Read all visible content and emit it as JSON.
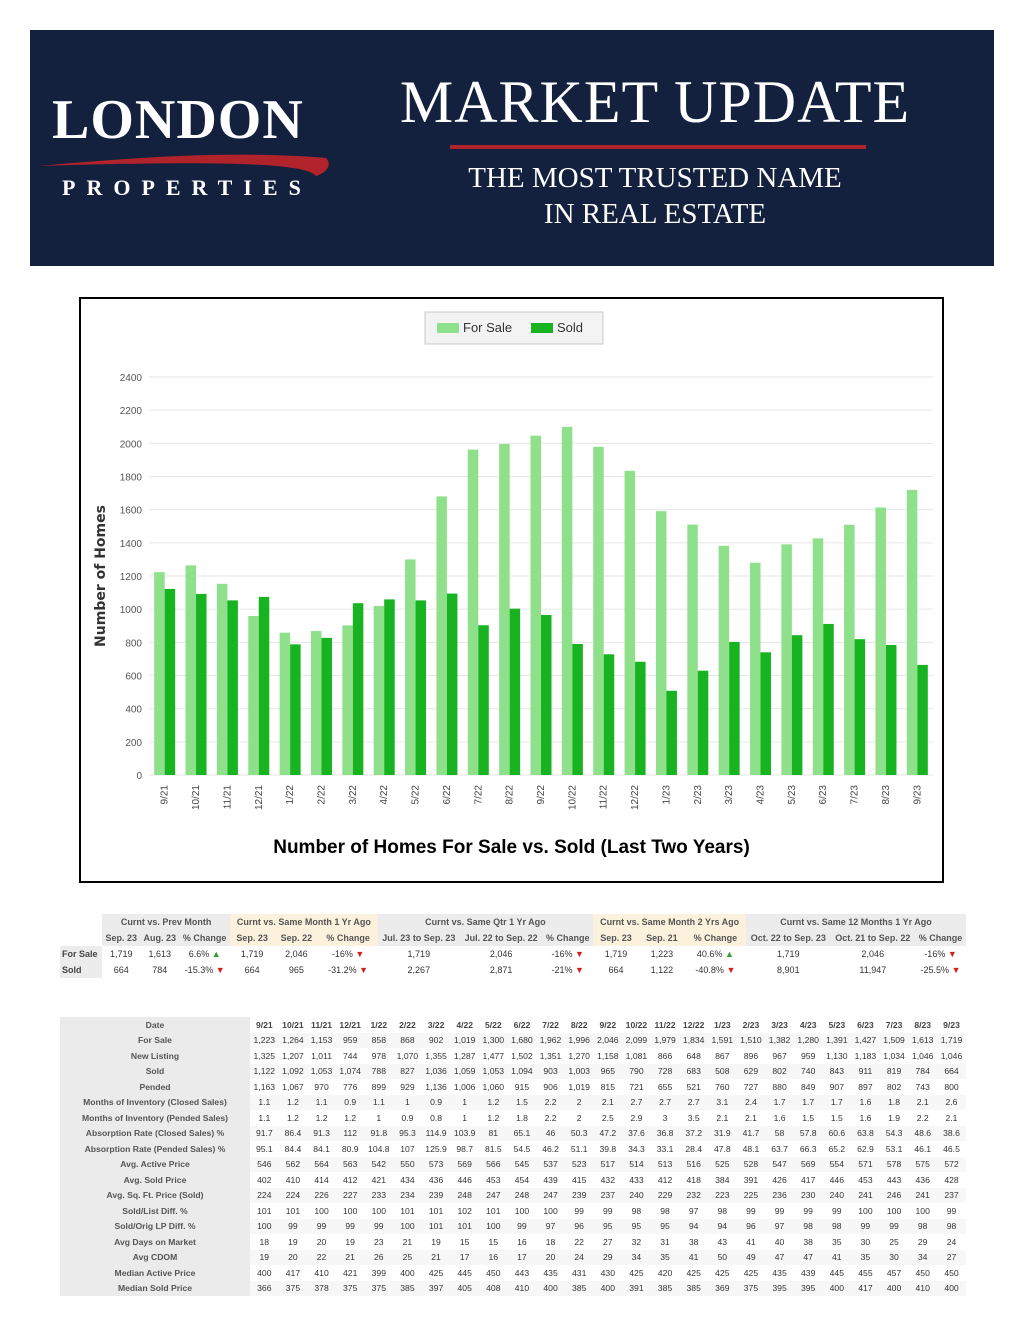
{
  "header": {
    "logo_main": "LONDON",
    "logo_sub": "PROPERTIES",
    "title": "MARKET UPDATE",
    "tagline_line1": "THE MOST TRUSTED NAME",
    "tagline_line2": "IN REAL ESTATE"
  },
  "colors": {
    "navy": "#13213f",
    "red": "#b1232a",
    "for_sale": "#8fe08a",
    "sold": "#17b320"
  },
  "chart_data": {
    "type": "bar",
    "title": "Number of Homes For Sale vs. Sold (Last Two Years)",
    "xlabel": "",
    "ylabel": "Number of Homes",
    "ylim": [
      0,
      2400
    ],
    "yticks": [
      0,
      200,
      400,
      600,
      800,
      1000,
      1200,
      1400,
      1600,
      1800,
      2000,
      2200,
      2400
    ],
    "legend_position": "top-center",
    "grid": true,
    "categories": [
      "9/21",
      "10/21",
      "11/21",
      "12/21",
      "1/22",
      "2/22",
      "3/22",
      "4/22",
      "5/22",
      "6/22",
      "7/22",
      "8/22",
      "9/22",
      "10/22",
      "11/22",
      "12/22",
      "1/23",
      "2/23",
      "3/23",
      "4/23",
      "5/23",
      "6/23",
      "7/23",
      "8/23",
      "9/23"
    ],
    "series": [
      {
        "name": "For Sale",
        "color": "#8fe08a",
        "values": [
          1223,
          1264,
          1153,
          959,
          858,
          868,
          902,
          1019,
          1300,
          1680,
          1962,
          1996,
          2046,
          2099,
          1979,
          1834,
          1591,
          1510,
          1382,
          1280,
          1391,
          1427,
          1509,
          1613,
          1719
        ]
      },
      {
        "name": "Sold",
        "color": "#17b320",
        "values": [
          1122,
          1092,
          1053,
          1074,
          788,
          827,
          1036,
          1059,
          1053,
          1094,
          903,
          1003,
          965,
          790,
          728,
          683,
          508,
          629,
          802,
          740,
          843,
          911,
          819,
          784,
          664
        ]
      }
    ]
  },
  "summary": {
    "groups": [
      "Curnt vs. Prev Month",
      "Curnt vs. Same Month 1 Yr Ago",
      "Curnt vs. Same Qtr 1 Yr Ago",
      "Curnt vs. Same Month 2 Yrs Ago",
      "Curnt vs. Same 12 Months 1 Yr Ago"
    ],
    "subheaders": [
      "Sep. 23",
      "Aug. 23",
      "% Change",
      "Sep. 23",
      "Sep. 22",
      "% Change",
      "Jul. 23 to Sep. 23",
      "Jul. 22 to Sep. 22",
      "% Change",
      "Sep. 23",
      "Sep. 21",
      "% Change",
      "Oct. 22 to Sep. 23",
      "Oct. 21 to Sep. 22",
      "% Change"
    ],
    "rows": [
      {
        "label": "For Sale",
        "cells": [
          "1,719",
          "1,613",
          "6.6% ▲",
          "1,719",
          "2,046",
          "-16% ▼",
          "1,719",
          "2,046",
          "-16% ▼",
          "1,719",
          "1,223",
          "40.6% ▲",
          "1,719",
          "2,046",
          "-16% ▼"
        ]
      },
      {
        "label": "Sold",
        "cells": [
          "664",
          "784",
          "-15.3% ▼",
          "664",
          "965",
          "-31.2% ▼",
          "2,267",
          "2,871",
          "-21% ▼",
          "664",
          "1,122",
          "-40.8% ▼",
          "8,901",
          "11,947",
          "-25.5% ▼"
        ]
      }
    ]
  },
  "detail": {
    "header_label": "Date",
    "dates": [
      "9/21",
      "10/21",
      "11/21",
      "12/21",
      "1/22",
      "2/22",
      "3/22",
      "4/22",
      "5/22",
      "6/22",
      "7/22",
      "8/22",
      "9/22",
      "10/22",
      "11/22",
      "12/22",
      "1/23",
      "2/23",
      "3/23",
      "4/23",
      "5/23",
      "6/23",
      "7/23",
      "8/23",
      "9/23"
    ],
    "rows": [
      {
        "label": "For Sale",
        "values": [
          "1,223",
          "1,264",
          "1,153",
          "959",
          "858",
          "868",
          "902",
          "1,019",
          "1,300",
          "1,680",
          "1,962",
          "1,996",
          "2,046",
          "2,099",
          "1,979",
          "1,834",
          "1,591",
          "1,510",
          "1,382",
          "1,280",
          "1,391",
          "1,427",
          "1,509",
          "1,613",
          "1,719"
        ]
      },
      {
        "label": "New Listing",
        "values": [
          "1,325",
          "1,207",
          "1,011",
          "744",
          "978",
          "1,070",
          "1,355",
          "1,287",
          "1,477",
          "1,502",
          "1,351",
          "1,270",
          "1,158",
          "1,081",
          "866",
          "648",
          "867",
          "896",
          "967",
          "959",
          "1,130",
          "1,183",
          "1,034",
          "1,046",
          "1,046"
        ]
      },
      {
        "label": "Sold",
        "values": [
          "1,122",
          "1,092",
          "1,053",
          "1,074",
          "788",
          "827",
          "1,036",
          "1,059",
          "1,053",
          "1,094",
          "903",
          "1,003",
          "965",
          "790",
          "728",
          "683",
          "508",
          "629",
          "802",
          "740",
          "843",
          "911",
          "819",
          "784",
          "664"
        ]
      },
      {
        "label": "Pended",
        "values": [
          "1,163",
          "1,067",
          "970",
          "776",
          "899",
          "929",
          "1,136",
          "1,006",
          "1,060",
          "915",
          "906",
          "1,019",
          "815",
          "721",
          "655",
          "521",
          "760",
          "727",
          "880",
          "849",
          "907",
          "897",
          "802",
          "743",
          "800"
        ]
      },
      {
        "label": "Months of Inventory (Closed Sales)",
        "values": [
          "1.1",
          "1.2",
          "1.1",
          "0.9",
          "1.1",
          "1",
          "0.9",
          "1",
          "1.2",
          "1.5",
          "2.2",
          "2",
          "2.1",
          "2.7",
          "2.7",
          "2.7",
          "3.1",
          "2.4",
          "1.7",
          "1.7",
          "1.7",
          "1.6",
          "1.8",
          "2.1",
          "2.6"
        ]
      },
      {
        "label": "Months of Inventory (Pended Sales)",
        "values": [
          "1.1",
          "1.2",
          "1.2",
          "1.2",
          "1",
          "0.9",
          "0.8",
          "1",
          "1.2",
          "1.8",
          "2.2",
          "2",
          "2.5",
          "2.9",
          "3",
          "3.5",
          "2.1",
          "2.1",
          "1.6",
          "1.5",
          "1.5",
          "1.6",
          "1.9",
          "2.2",
          "2.1"
        ]
      },
      {
        "label": "Absorption Rate (Closed Sales) %",
        "values": [
          "91.7",
          "86.4",
          "91.3",
          "112",
          "91.8",
          "95.3",
          "114.9",
          "103.9",
          "81",
          "65.1",
          "46",
          "50.3",
          "47.2",
          "37.6",
          "36.8",
          "37.2",
          "31.9",
          "41.7",
          "58",
          "57.8",
          "60.6",
          "63.8",
          "54.3",
          "48.6",
          "38.6"
        ]
      },
      {
        "label": "Absorption Rate (Pended Sales) %",
        "values": [
          "95.1",
          "84.4",
          "84.1",
          "80.9",
          "104.8",
          "107",
          "125.9",
          "98.7",
          "81.5",
          "54.5",
          "46.2",
          "51.1",
          "39.8",
          "34.3",
          "33.1",
          "28.4",
          "47.8",
          "48.1",
          "63.7",
          "66.3",
          "65.2",
          "62.9",
          "53.1",
          "46.1",
          "46.5"
        ]
      },
      {
        "label": "Avg. Active Price",
        "values": [
          "546",
          "562",
          "564",
          "563",
          "542",
          "550",
          "573",
          "569",
          "566",
          "545",
          "537",
          "523",
          "517",
          "514",
          "513",
          "516",
          "525",
          "528",
          "547",
          "569",
          "554",
          "571",
          "578",
          "575",
          "572"
        ]
      },
      {
        "label": "Avg. Sold Price",
        "values": [
          "402",
          "410",
          "414",
          "412",
          "421",
          "434",
          "436",
          "446",
          "453",
          "454",
          "439",
          "415",
          "432",
          "433",
          "412",
          "418",
          "384",
          "391",
          "426",
          "417",
          "446",
          "453",
          "443",
          "436",
          "428"
        ]
      },
      {
        "label": "Avg. Sq. Ft. Price (Sold)",
        "values": [
          "224",
          "224",
          "226",
          "227",
          "233",
          "234",
          "239",
          "248",
          "247",
          "248",
          "247",
          "239",
          "237",
          "240",
          "229",
          "232",
          "223",
          "225",
          "236",
          "230",
          "240",
          "241",
          "246",
          "241",
          "237"
        ]
      },
      {
        "label": "Sold/List Diff. %",
        "values": [
          "101",
          "101",
          "100",
          "100",
          "100",
          "101",
          "101",
          "102",
          "101",
          "100",
          "100",
          "99",
          "99",
          "98",
          "98",
          "97",
          "98",
          "99",
          "99",
          "99",
          "99",
          "100",
          "100",
          "100",
          "99"
        ]
      },
      {
        "label": "Sold/Orig LP Diff. %",
        "values": [
          "100",
          "99",
          "99",
          "99",
          "99",
          "100",
          "101",
          "101",
          "100",
          "99",
          "97",
          "96",
          "95",
          "95",
          "95",
          "94",
          "94",
          "96",
          "97",
          "98",
          "98",
          "99",
          "99",
          "98",
          "98"
        ]
      },
      {
        "label": "Avg Days on Market",
        "values": [
          "18",
          "19",
          "20",
          "19",
          "23",
          "21",
          "19",
          "15",
          "15",
          "16",
          "18",
          "22",
          "27",
          "32",
          "31",
          "38",
          "43",
          "41",
          "40",
          "38",
          "35",
          "30",
          "25",
          "29",
          "24"
        ]
      },
      {
        "label": "Avg CDOM",
        "values": [
          "19",
          "20",
          "22",
          "21",
          "26",
          "25",
          "21",
          "17",
          "16",
          "17",
          "20",
          "24",
          "29",
          "34",
          "35",
          "41",
          "50",
          "49",
          "47",
          "47",
          "41",
          "35",
          "30",
          "34",
          "27"
        ]
      },
      {
        "label": "Median Active Price",
        "values": [
          "400",
          "417",
          "410",
          "421",
          "399",
          "400",
          "425",
          "445",
          "450",
          "443",
          "435",
          "431",
          "430",
          "425",
          "420",
          "425",
          "425",
          "425",
          "435",
          "439",
          "445",
          "455",
          "457",
          "450",
          "450"
        ]
      },
      {
        "label": "Median Sold Price",
        "values": [
          "366",
          "375",
          "378",
          "375",
          "375",
          "385",
          "397",
          "405",
          "408",
          "410",
          "400",
          "385",
          "400",
          "391",
          "385",
          "385",
          "369",
          "375",
          "395",
          "395",
          "400",
          "417",
          "400",
          "410",
          "400"
        ]
      }
    ]
  }
}
